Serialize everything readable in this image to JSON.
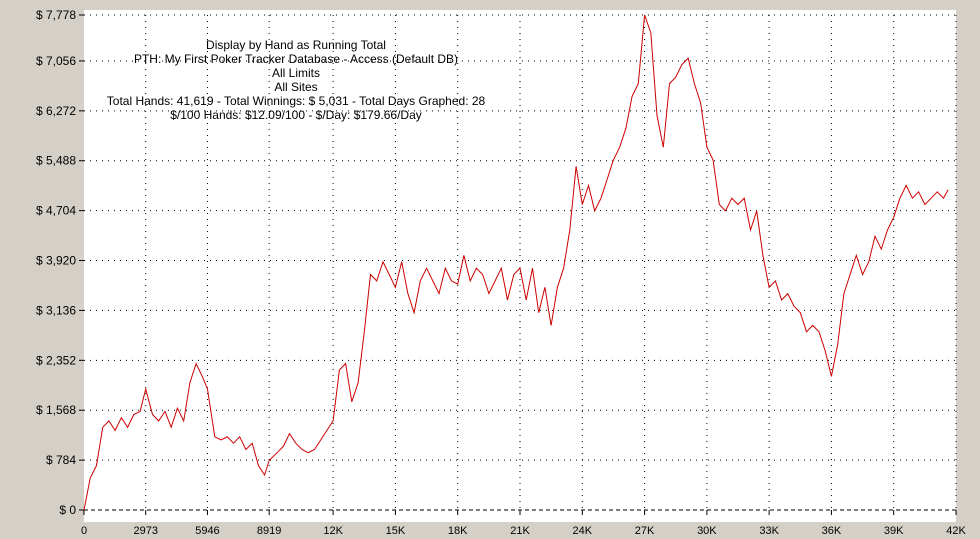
{
  "colors": {
    "background": "#d4d0c8",
    "plot": "#ffffff",
    "line": "#cc0000",
    "grid": "#000000"
  },
  "info": [
    "Display by Hand as Running Total",
    "PTH: My First Poker Tracker Database - Access (Default DB)",
    "All Limits",
    "All Sites",
    "Total Hands: 41,619 - Total Winnings: $ 5,031 - Total Days Graphed: 28",
    "$/100 Hands: $12.09/100 - $/Day: $179.66/Day"
  ],
  "chart_data": {
    "type": "line",
    "title": "Display by Hand as Running Total",
    "xlim": [
      0,
      42000
    ],
    "ylim": [
      0,
      7778
    ],
    "grid": true,
    "x_ticks": [
      {
        "value": 0,
        "label": "0"
      },
      {
        "value": 2973,
        "label": "2973"
      },
      {
        "value": 5946,
        "label": "5946"
      },
      {
        "value": 8919,
        "label": "8919"
      },
      {
        "value": 12000,
        "label": "12K"
      },
      {
        "value": 15000,
        "label": "15K"
      },
      {
        "value": 18000,
        "label": "18K"
      },
      {
        "value": 21000,
        "label": "21K"
      },
      {
        "value": 24000,
        "label": "24K"
      },
      {
        "value": 27000,
        "label": "27K"
      },
      {
        "value": 30000,
        "label": "30K"
      },
      {
        "value": 33000,
        "label": "33K"
      },
      {
        "value": 36000,
        "label": "36K"
      },
      {
        "value": 39000,
        "label": "39K"
      },
      {
        "value": 42000,
        "label": "42K"
      }
    ],
    "y_ticks": [
      {
        "value": 0,
        "label": "$ 0"
      },
      {
        "value": 784,
        "label": "$ 784"
      },
      {
        "value": 1568,
        "label": "$ 1,568"
      },
      {
        "value": 2352,
        "label": "$ 2,352"
      },
      {
        "value": 3136,
        "label": "$ 3,136"
      },
      {
        "value": 3920,
        "label": "$ 3,920"
      },
      {
        "value": 4704,
        "label": "$ 4,704"
      },
      {
        "value": 5488,
        "label": "$ 5,488"
      },
      {
        "value": 6272,
        "label": "$ 6,272"
      },
      {
        "value": 7056,
        "label": "$ 7,056"
      },
      {
        "value": 7778,
        "label": "$ 7,778"
      }
    ],
    "series": [
      {
        "x": [
          0,
          300,
          600,
          900,
          1200,
          1500,
          1800,
          2100,
          2400,
          2700,
          2973,
          3300,
          3600,
          3900,
          4200,
          4500,
          4800,
          5100,
          5400,
          5700,
          5946,
          6300,
          6600,
          6900,
          7200,
          7500,
          7800,
          8100,
          8400,
          8700,
          8919,
          9300,
          9600,
          9900,
          10200,
          10500,
          10800,
          11100,
          11400,
          11700,
          12000,
          12300,
          12600,
          12900,
          13200,
          13500,
          13800,
          14100,
          14400,
          14700,
          15000,
          15300,
          15600,
          15900,
          16200,
          16500,
          16800,
          17100,
          17400,
          17700,
          18000,
          18300,
          18600,
          18900,
          19200,
          19500,
          19800,
          20100,
          20400,
          20700,
          21000,
          21300,
          21600,
          21900,
          22200,
          22500,
          22800,
          23100,
          23400,
          23700,
          24000,
          24300,
          24600,
          24900,
          25200,
          25500,
          25800,
          26100,
          26400,
          26700,
          27000,
          27300,
          27600,
          27900,
          28200,
          28500,
          28800,
          29100,
          29400,
          29700,
          30000,
          30300,
          30600,
          30900,
          31200,
          31500,
          31800,
          32100,
          32400,
          32700,
          33000,
          33300,
          33600,
          33900,
          34200,
          34500,
          34800,
          35100,
          35400,
          35700,
          36000,
          36300,
          36600,
          36900,
          37200,
          37500,
          37800,
          38100,
          38400,
          38700,
          39000,
          39300,
          39600,
          39900,
          40200,
          40500,
          40800,
          41100,
          41400,
          41619
        ],
        "y": [
          0,
          500,
          700,
          1300,
          1400,
          1250,
          1450,
          1300,
          1500,
          1550,
          1900,
          1500,
          1400,
          1550,
          1300,
          1600,
          1400,
          2000,
          2300,
          2100,
          1900,
          1150,
          1100,
          1150,
          1050,
          1150,
          950,
          1050,
          700,
          550,
          780,
          900,
          1000,
          1200,
          1050,
          950,
          900,
          950,
          1100,
          1250,
          1400,
          2200,
          2300,
          1700,
          2000,
          2800,
          3700,
          3600,
          3900,
          3700,
          3500,
          3900,
          3400,
          3100,
          3600,
          3800,
          3600,
          3400,
          3800,
          3600,
          3550,
          4000,
          3600,
          3800,
          3700,
          3400,
          3600,
          3800,
          3300,
          3700,
          3800,
          3300,
          3800,
          3100,
          3500,
          2900,
          3500,
          3800,
          4400,
          5400,
          4800,
          5100,
          4700,
          4900,
          5200,
          5500,
          5700,
          6000,
          6500,
          6700,
          7778,
          7500,
          6200,
          5700,
          6700,
          6800,
          7000,
          7100,
          6700,
          6400,
          5700,
          5500,
          4800,
          4700,
          4900,
          4800,
          4900,
          4400,
          4700,
          4000,
          3500,
          3600,
          3300,
          3400,
          3200,
          3100,
          2800,
          2900,
          2800,
          2500,
          2100,
          2600,
          3400,
          3700,
          4000,
          3700,
          3900,
          4300,
          4100,
          4400,
          4600,
          4900,
          5100,
          4900,
          5000,
          4800,
          4900,
          5000,
          4900,
          5031
        ]
      }
    ]
  }
}
